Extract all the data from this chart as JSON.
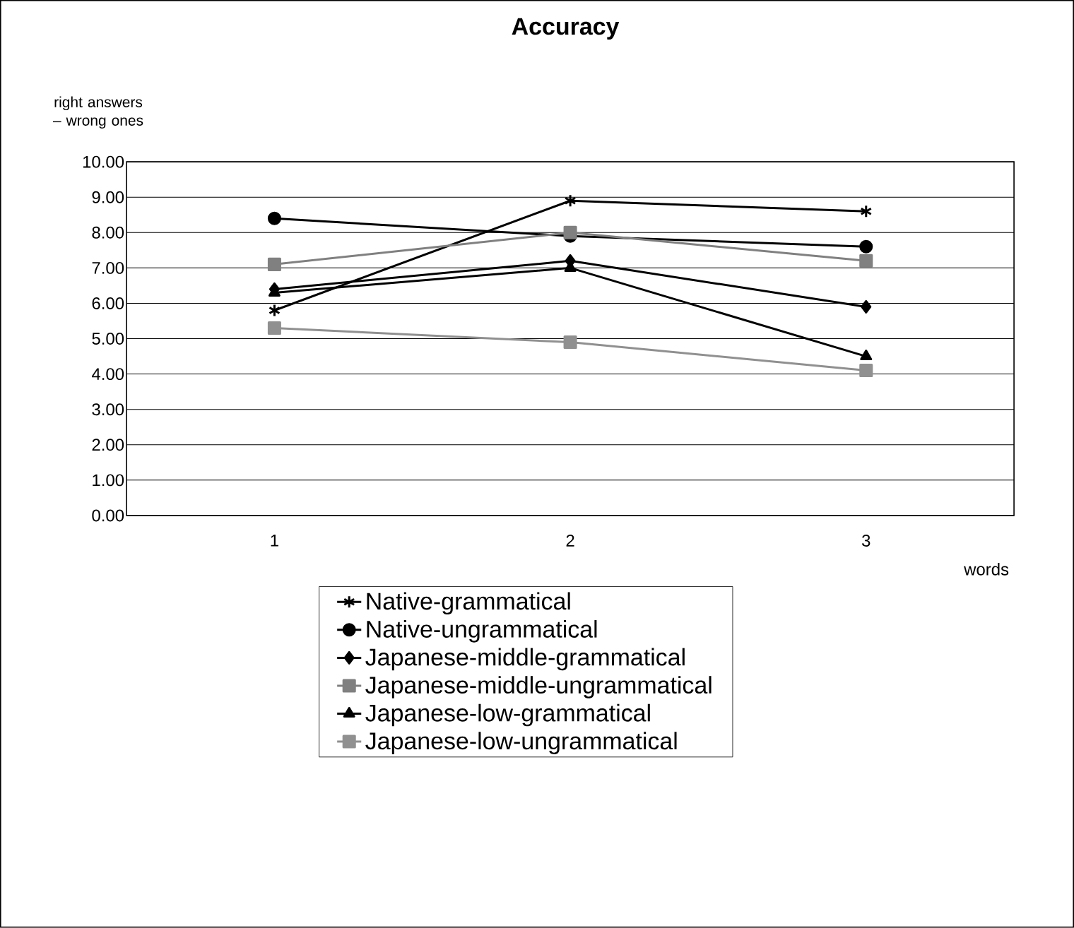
{
  "chart_data": {
    "type": "line",
    "title": "Accuracy",
    "ylabel": "right answers – wrong ones",
    "xlabel": "words",
    "categories": [
      "1",
      "2",
      "3"
    ],
    "series": [
      {
        "name": "Native-grammatical",
        "color": "#000000",
        "marker": "cross",
        "values": [
          5.8,
          8.9,
          8.6
        ]
      },
      {
        "name": "Native-ungrammatical",
        "color": "#000000",
        "marker": "circle",
        "values": [
          8.4,
          7.9,
          7.6
        ]
      },
      {
        "name": "Japanese-middle-grammatical",
        "color": "#000000",
        "marker": "diamond",
        "values": [
          6.4,
          7.2,
          5.9
        ]
      },
      {
        "name": "Japanese-middle-ungrammatical",
        "color": "#808080",
        "marker": "square",
        "values": [
          7.1,
          8.0,
          7.2
        ]
      },
      {
        "name": "Japanese-low-grammatical",
        "color": "#000000",
        "marker": "triangle",
        "values": [
          6.3,
          7.0,
          4.5
        ]
      },
      {
        "name": "Japanese-low-ungrammatical",
        "color": "#909090",
        "marker": "square",
        "values": [
          5.3,
          4.9,
          4.1
        ]
      }
    ],
    "ylim": [
      0,
      10
    ],
    "yticks": [
      {
        "value": 0,
        "label": "0.00"
      },
      {
        "value": 1,
        "label": "1.00"
      },
      {
        "value": 2,
        "label": "2.00"
      },
      {
        "value": 3,
        "label": "3.00"
      },
      {
        "value": 4,
        "label": "4.00"
      },
      {
        "value": 5,
        "label": "5.00"
      },
      {
        "value": 6,
        "label": "6.00"
      },
      {
        "value": 7,
        "label": "7.00"
      },
      {
        "value": 8,
        "label": "8.00"
      },
      {
        "value": 9,
        "label": "9.00"
      },
      {
        "value": 10,
        "label": "10.00"
      }
    ],
    "grid": "y",
    "legend": "bottom",
    "line_style": "solid"
  }
}
